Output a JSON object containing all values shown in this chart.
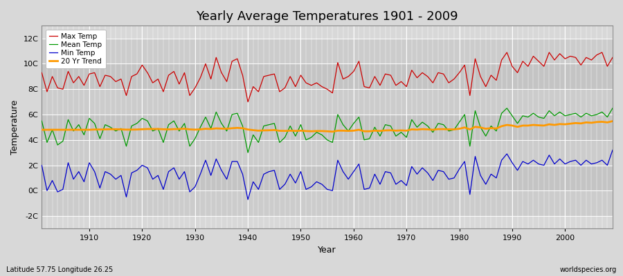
{
  "title": "Yearly Average Temperatures 1901 - 2009",
  "xlabel": "Year",
  "ylabel": "Temperature",
  "subtitle_left": "Latitude 57.75 Longitude 26.25",
  "subtitle_right": "worldspecies.org",
  "years": [
    1901,
    1902,
    1903,
    1904,
    1905,
    1906,
    1907,
    1908,
    1909,
    1910,
    1911,
    1912,
    1913,
    1914,
    1915,
    1916,
    1917,
    1918,
    1919,
    1920,
    1921,
    1922,
    1923,
    1924,
    1925,
    1926,
    1927,
    1928,
    1929,
    1930,
    1931,
    1932,
    1933,
    1934,
    1935,
    1936,
    1937,
    1938,
    1939,
    1940,
    1941,
    1942,
    1943,
    1944,
    1945,
    1946,
    1947,
    1948,
    1949,
    1950,
    1951,
    1952,
    1953,
    1954,
    1955,
    1956,
    1957,
    1958,
    1959,
    1960,
    1961,
    1962,
    1963,
    1964,
    1965,
    1966,
    1967,
    1968,
    1969,
    1970,
    1971,
    1972,
    1973,
    1974,
    1975,
    1976,
    1977,
    1978,
    1979,
    1980,
    1981,
    1982,
    1983,
    1984,
    1985,
    1986,
    1987,
    1988,
    1989,
    1990,
    1991,
    1992,
    1993,
    1994,
    1995,
    1996,
    1997,
    1998,
    1999,
    2000,
    2001,
    2002,
    2003,
    2004,
    2005,
    2006,
    2007,
    2008,
    2009
  ],
  "max_temp": [
    9.3,
    7.8,
    9.0,
    8.1,
    8.0,
    9.4,
    8.5,
    9.0,
    8.3,
    9.2,
    9.3,
    8.2,
    9.1,
    9.0,
    8.6,
    8.8,
    7.5,
    9.0,
    9.2,
    9.9,
    9.3,
    8.5,
    8.8,
    7.8,
    9.1,
    9.4,
    8.4,
    9.3,
    7.5,
    8.1,
    8.9,
    10.0,
    8.8,
    10.5,
    9.3,
    8.6,
    10.2,
    10.4,
    9.1,
    7.0,
    8.2,
    7.8,
    9.0,
    9.1,
    9.2,
    7.8,
    8.1,
    9.0,
    8.2,
    9.1,
    8.5,
    8.3,
    8.5,
    8.2,
    8.0,
    7.7,
    10.1,
    8.8,
    9.0,
    9.4,
    10.2,
    8.2,
    8.1,
    9.0,
    8.3,
    9.2,
    9.1,
    8.3,
    8.6,
    8.2,
    9.5,
    8.9,
    9.3,
    9.0,
    8.5,
    9.3,
    9.2,
    8.5,
    8.8,
    9.3,
    9.9,
    7.5,
    10.4,
    9.0,
    8.2,
    9.1,
    8.7,
    10.3,
    10.9,
    9.8,
    9.3,
    10.2,
    9.8,
    10.6,
    10.2,
    9.8,
    10.9,
    10.3,
    10.8,
    10.4,
    10.6,
    10.5,
    9.9,
    10.5,
    10.3,
    10.7,
    10.9,
    9.8,
    10.5
  ],
  "mean_temp": [
    5.5,
    3.8,
    4.8,
    3.6,
    3.9,
    5.6,
    4.7,
    5.2,
    4.4,
    5.7,
    5.3,
    4.1,
    5.2,
    5.0,
    4.7,
    4.9,
    3.5,
    5.1,
    5.3,
    5.7,
    5.5,
    4.7,
    4.9,
    3.8,
    5.2,
    5.5,
    4.7,
    5.3,
    3.5,
    4.1,
    5.0,
    5.8,
    4.9,
    6.2,
    5.3,
    4.7,
    6.0,
    6.1,
    5.1,
    3.0,
    4.4,
    3.8,
    5.1,
    5.2,
    5.3,
    3.8,
    4.2,
    5.1,
    4.3,
    5.2,
    4.0,
    4.2,
    4.6,
    4.4,
    4.0,
    3.8,
    6.0,
    5.2,
    4.7,
    5.3,
    5.8,
    4.0,
    4.1,
    5.0,
    4.3,
    5.2,
    5.1,
    4.3,
    4.6,
    4.2,
    5.6,
    5.0,
    5.4,
    5.1,
    4.6,
    5.3,
    5.2,
    4.7,
    4.8,
    5.4,
    6.0,
    3.5,
    6.3,
    5.0,
    4.3,
    5.1,
    4.7,
    6.1,
    6.5,
    5.9,
    5.3,
    5.9,
    5.8,
    6.1,
    5.8,
    5.7,
    6.3,
    5.9,
    6.2,
    5.9,
    6.0,
    6.1,
    5.8,
    6.1,
    5.9,
    6.0,
    6.2,
    5.8,
    6.5
  ],
  "min_temp": [
    2.0,
    0.0,
    0.8,
    -0.1,
    0.1,
    2.2,
    0.9,
    1.5,
    0.7,
    2.2,
    1.5,
    0.2,
    1.5,
    1.3,
    0.9,
    1.2,
    -0.5,
    1.4,
    1.6,
    2.0,
    1.8,
    0.9,
    1.2,
    0.1,
    1.5,
    1.8,
    0.9,
    1.5,
    -0.1,
    0.3,
    1.3,
    2.4,
    1.2,
    2.5,
    1.6,
    0.9,
    2.3,
    2.3,
    1.3,
    -0.7,
    0.7,
    0.1,
    1.3,
    1.5,
    1.6,
    0.1,
    0.5,
    1.3,
    0.6,
    1.5,
    0.1,
    0.3,
    0.7,
    0.5,
    0.1,
    0.0,
    2.4,
    1.5,
    0.9,
    1.5,
    2.1,
    0.1,
    0.2,
    1.3,
    0.5,
    1.5,
    1.4,
    0.5,
    0.8,
    0.4,
    1.9,
    1.3,
    1.8,
    1.4,
    0.8,
    1.6,
    1.5,
    0.9,
    1.0,
    1.7,
    2.3,
    -0.3,
    2.7,
    1.2,
    0.5,
    1.3,
    1.0,
    2.4,
    2.9,
    2.2,
    1.6,
    2.3,
    2.1,
    2.4,
    2.1,
    2.0,
    2.8,
    2.1,
    2.5,
    2.1,
    2.3,
    2.4,
    2.0,
    2.4,
    2.1,
    2.2,
    2.4,
    2.0,
    3.2
  ],
  "trend_20yr": [
    4.8,
    4.8,
    4.8,
    4.8,
    4.8,
    4.8,
    4.8,
    4.8,
    4.8,
    4.8,
    4.82,
    4.82,
    4.83,
    4.84,
    4.84,
    4.83,
    4.81,
    4.81,
    4.82,
    4.84,
    4.86,
    4.86,
    4.86,
    4.84,
    4.83,
    4.85,
    4.86,
    4.88,
    4.83,
    4.81,
    4.83,
    4.88,
    4.86,
    4.91,
    4.89,
    4.88,
    4.92,
    4.95,
    4.92,
    4.82,
    4.77,
    4.73,
    4.75,
    4.76,
    4.78,
    4.72,
    4.71,
    4.73,
    4.71,
    4.73,
    4.7,
    4.68,
    4.7,
    4.7,
    4.68,
    4.65,
    4.73,
    4.73,
    4.71,
    4.73,
    4.8,
    4.68,
    4.68,
    4.73,
    4.71,
    4.75,
    4.76,
    4.73,
    4.75,
    4.73,
    4.83,
    4.81,
    4.85,
    4.83,
    4.8,
    4.85,
    4.85,
    4.83,
    4.83,
    4.88,
    4.98,
    4.83,
    5.03,
    4.98,
    4.88,
    4.93,
    4.9,
    5.08,
    5.18,
    5.13,
    5.03,
    5.13,
    5.13,
    5.18,
    5.15,
    5.13,
    5.23,
    5.18,
    5.25,
    5.23,
    5.28,
    5.33,
    5.3,
    5.38,
    5.35,
    5.41,
    5.43,
    5.38,
    5.48
  ],
  "max_color": "#cc0000",
  "mean_color": "#009900",
  "min_color": "#0000cc",
  "trend_color": "#ff9900",
  "bg_color": "#d8d8d8",
  "plot_bg_color": "#d8d8d8",
  "grid_color": "#ffffff",
  "ylim": [
    -3,
    13
  ],
  "yticks": [
    -2,
    0,
    2,
    4,
    6,
    8,
    10,
    12
  ],
  "ytick_labels": [
    "-2C",
    "0C",
    "2C",
    "4C",
    "6C",
    "8C",
    "10C",
    "12C"
  ],
  "xtick_start": 1910,
  "xtick_end": 2000,
  "xtick_step": 10,
  "xlim_left": 1901,
  "xlim_right": 2009
}
